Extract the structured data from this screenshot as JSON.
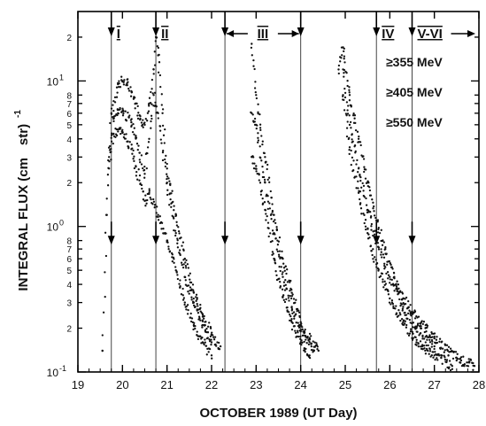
{
  "chart_data": {
    "type": "scatter",
    "title": "",
    "xlabel": "OCTOBER 1989  (UT Day)",
    "ylabel": "INTEGRAL FLUX (cm² s sr MeV)⁻¹",
    "ylabel_visible": [
      "INTEGRAL FLUX (cm",
      "str)",
      "-1"
    ],
    "xlim": [
      19,
      28
    ],
    "ylim": [
      0.1,
      30
    ],
    "yscale": "log",
    "grid": false,
    "x_ticks": [
      "19",
      "20",
      "21",
      "22",
      "23",
      "24",
      "25",
      "26",
      "27",
      "28"
    ],
    "y_ticks": [
      {
        "value": 0.1,
        "mantissa": "10",
        "exp": "-1"
      },
      {
        "value": 0.2,
        "label": "2"
      },
      {
        "value": 0.3,
        "label": "3"
      },
      {
        "value": 0.4,
        "label": "4"
      },
      {
        "value": 0.5,
        "label": "5"
      },
      {
        "value": 0.6,
        "label": "6"
      },
      {
        "value": 0.7,
        "label": "7"
      },
      {
        "value": 0.8,
        "label": "8"
      },
      {
        "value": 1,
        "mantissa": "10",
        "exp": "0"
      },
      {
        "value": 2,
        "label": "2"
      },
      {
        "value": 3,
        "label": "3"
      },
      {
        "value": 4,
        "label": "4"
      },
      {
        "value": 5,
        "label": "5"
      },
      {
        "value": 6,
        "label": "6"
      },
      {
        "value": 7,
        "label": "7"
      },
      {
        "value": 8,
        "label": "8"
      },
      {
        "value": 10,
        "mantissa": "10",
        "exp": "1"
      },
      {
        "value": 20,
        "label": "2"
      }
    ],
    "legend": [
      "≥355 MeV",
      "≥405 MeV",
      "≥550 MeV"
    ],
    "legend_placement": "top-right",
    "event_markers": [
      {
        "label": "I",
        "x": 19.75
      },
      {
        "label": "II",
        "x": 20.75
      },
      {
        "label": "III",
        "x_start": 22.3,
        "x_end": 24.0
      },
      {
        "label": "IV",
        "x": 25.7
      },
      {
        "label": "V-VI",
        "x": 26.5,
        "arrow_right": true
      }
    ],
    "series": [
      {
        "name": "≥355 MeV",
        "points": [
          [
            19.55,
            0.14
          ],
          [
            19.65,
            1.2
          ],
          [
            19.75,
            6.0
          ],
          [
            19.9,
            9.5
          ],
          [
            20.0,
            10.0
          ],
          [
            20.1,
            9.6
          ],
          [
            20.2,
            8.5
          ],
          [
            20.3,
            7.0
          ],
          [
            20.4,
            5.5
          ],
          [
            20.5,
            5.0
          ],
          [
            20.6,
            7.0
          ],
          [
            20.7,
            12.0
          ],
          [
            20.75,
            20.0
          ],
          [
            20.8,
            15.0
          ],
          [
            20.9,
            6.0
          ],
          [
            21.0,
            2.5
          ],
          [
            21.2,
            1.2
          ],
          [
            21.4,
            0.6
          ],
          [
            21.6,
            0.35
          ],
          [
            21.8,
            0.25
          ],
          [
            22.0,
            0.18
          ],
          [
            22.2,
            0.15
          ],
          [
            22.9,
            18.0
          ],
          [
            23.0,
            8.0
          ],
          [
            23.2,
            3.0
          ],
          [
            23.4,
            1.2
          ],
          [
            23.6,
            0.6
          ],
          [
            23.8,
            0.35
          ],
          [
            24.0,
            0.22
          ],
          [
            24.2,
            0.17
          ],
          [
            24.4,
            0.14
          ],
          [
            24.85,
            12.0
          ],
          [
            24.95,
            17.0
          ],
          [
            25.1,
            8.0
          ],
          [
            25.3,
            4.0
          ],
          [
            25.5,
            2.0
          ],
          [
            25.7,
            1.1
          ],
          [
            25.9,
            0.7
          ],
          [
            26.1,
            0.45
          ],
          [
            26.3,
            0.32
          ],
          [
            26.5,
            0.26
          ],
          [
            26.8,
            0.2
          ],
          [
            27.0,
            0.17
          ],
          [
            27.3,
            0.14
          ],
          [
            27.6,
            0.12
          ],
          [
            27.9,
            0.11
          ]
        ]
      },
      {
        "name": "≥405 MeV",
        "points": [
          [
            19.7,
            3.0
          ],
          [
            19.8,
            5.5
          ],
          [
            19.9,
            6.0
          ],
          [
            20.0,
            6.2
          ],
          [
            20.2,
            5.2
          ],
          [
            20.3,
            4.2
          ],
          [
            20.5,
            2.3
          ],
          [
            20.6,
            4.0
          ],
          [
            20.7,
            8.0
          ],
          [
            20.8,
            6.0
          ],
          [
            21.0,
            2.0
          ],
          [
            21.2,
            0.9
          ],
          [
            21.4,
            0.45
          ],
          [
            21.6,
            0.3
          ],
          [
            21.8,
            0.21
          ],
          [
            22.0,
            0.16
          ],
          [
            22.9,
            6.0
          ],
          [
            23.0,
            5.0
          ],
          [
            23.2,
            2.0
          ],
          [
            23.4,
            0.9
          ],
          [
            23.6,
            0.45
          ],
          [
            23.8,
            0.28
          ],
          [
            24.0,
            0.19
          ],
          [
            24.3,
            0.14
          ],
          [
            24.95,
            12.0
          ],
          [
            25.1,
            5.0
          ],
          [
            25.3,
            2.5
          ],
          [
            25.5,
            1.3
          ],
          [
            25.7,
            0.8
          ],
          [
            26.0,
            0.45
          ],
          [
            26.3,
            0.28
          ],
          [
            26.6,
            0.2
          ],
          [
            27.0,
            0.15
          ],
          [
            27.5,
            0.12
          ]
        ]
      },
      {
        "name": "≥550 MeV",
        "points": [
          [
            19.7,
            2.5
          ],
          [
            19.8,
            4.3
          ],
          [
            19.9,
            4.5
          ],
          [
            20.0,
            4.4
          ],
          [
            20.2,
            3.4
          ],
          [
            20.3,
            2.6
          ],
          [
            20.5,
            1.5
          ],
          [
            20.6,
            1.7
          ],
          [
            20.8,
            1.2
          ],
          [
            21.0,
            0.8
          ],
          [
            21.2,
            0.5
          ],
          [
            21.4,
            0.3
          ],
          [
            21.6,
            0.21
          ],
          [
            21.8,
            0.16
          ],
          [
            22.0,
            0.13
          ],
          [
            22.9,
            3.0
          ],
          [
            23.0,
            2.6
          ],
          [
            23.2,
            1.3
          ],
          [
            23.4,
            0.6
          ],
          [
            23.6,
            0.33
          ],
          [
            23.8,
            0.22
          ],
          [
            24.0,
            0.16
          ],
          [
            24.2,
            0.13
          ],
          [
            24.95,
            8.0
          ],
          [
            25.1,
            3.5
          ],
          [
            25.3,
            1.7
          ],
          [
            25.5,
            0.9
          ],
          [
            25.7,
            0.55
          ],
          [
            26.0,
            0.32
          ],
          [
            26.3,
            0.22
          ],
          [
            26.6,
            0.16
          ],
          [
            27.0,
            0.13
          ],
          [
            27.4,
            0.11
          ]
        ]
      }
    ]
  }
}
